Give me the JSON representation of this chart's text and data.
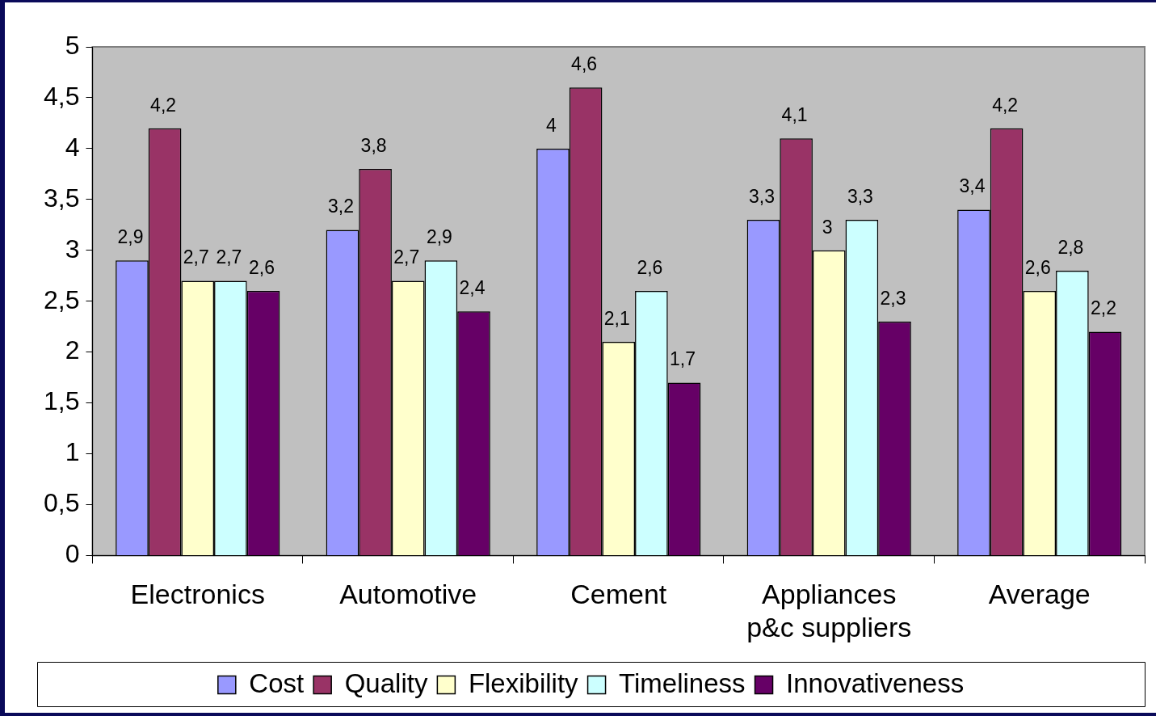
{
  "chart_data": {
    "type": "bar",
    "categories": [
      "Electronics",
      "Automotive",
      "Cement",
      "Appliances\np&c suppliers",
      "Average"
    ],
    "series": [
      {
        "name": "Cost",
        "color": "#9999ff",
        "values": [
          2.9,
          3.2,
          4,
          3.3,
          3.4
        ],
        "value_labels": [
          "2,9",
          "3,2",
          "4",
          "3,3",
          "3,4"
        ]
      },
      {
        "name": "Quality",
        "color": "#993366",
        "values": [
          4.2,
          3.8,
          4.6,
          4.1,
          4.2
        ],
        "value_labels": [
          "4,2",
          "3,8",
          "4,6",
          "4,1",
          "4,2"
        ]
      },
      {
        "name": "Flexibility",
        "color": "#ffffcc",
        "values": [
          2.7,
          2.7,
          2.1,
          3,
          2.6
        ],
        "value_labels": [
          "2,7",
          "2,7",
          "2,1",
          "3",
          "2,6"
        ]
      },
      {
        "name": "Timeliness",
        "color": "#ccffff",
        "values": [
          2.7,
          2.9,
          2.6,
          3.3,
          2.8
        ],
        "value_labels": [
          "2,7",
          "2,9",
          "2,6",
          "3,3",
          "2,8"
        ]
      },
      {
        "name": "Innovativeness",
        "color": "#660066",
        "values": [
          2.6,
          2.4,
          1.7,
          2.3,
          2.2
        ],
        "value_labels": [
          "2,6",
          "2,4",
          "1,7",
          "2,3",
          "2,2"
        ]
      }
    ],
    "ylim": [
      0,
      5
    ],
    "yticks": [
      0,
      {
        "value": 0.5,
        "label": "0,5"
      },
      1,
      {
        "value": 1.5,
        "label": "1,5"
      },
      2,
      {
        "value": 2.5,
        "label": "2,5"
      },
      3,
      {
        "value": 3.5,
        "label": "3,5"
      },
      4,
      {
        "value": 4.5,
        "label": "4,5"
      },
      5
    ],
    "grid": false,
    "legend": "bottom"
  }
}
